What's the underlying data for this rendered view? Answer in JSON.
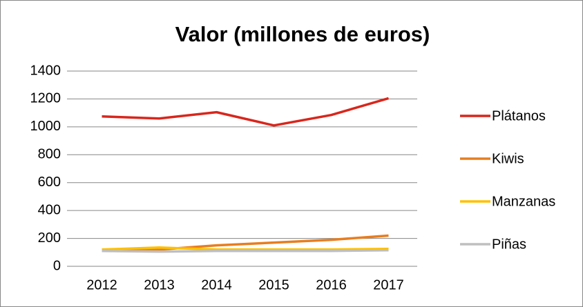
{
  "chart_data": {
    "type": "line",
    "title": "Valor (millones de euros)",
    "categories": [
      "2012",
      "2013",
      "2014",
      "2015",
      "2016",
      "2017"
    ],
    "series": [
      {
        "name": "Plátanos",
        "color": "#d9261c",
        "values": [
          1075,
          1060,
          1105,
          1010,
          1085,
          1205
        ]
      },
      {
        "name": "Kiwis",
        "color": "#e87d1e",
        "values": [
          120,
          120,
          150,
          170,
          190,
          220
        ]
      },
      {
        "name": "Manzanas",
        "color": "#ffc000",
        "values": [
          120,
          135,
          120,
          120,
          120,
          125
        ]
      },
      {
        "name": "Piñas",
        "color": "#bfbfbf",
        "values": [
          110,
          105,
          110,
          110,
          110,
          115
        ]
      }
    ],
    "ylim": [
      0,
      1400
    ],
    "yticks": [
      0,
      200,
      400,
      600,
      800,
      1000,
      1200,
      1400
    ],
    "grid": true,
    "legend": "right"
  }
}
